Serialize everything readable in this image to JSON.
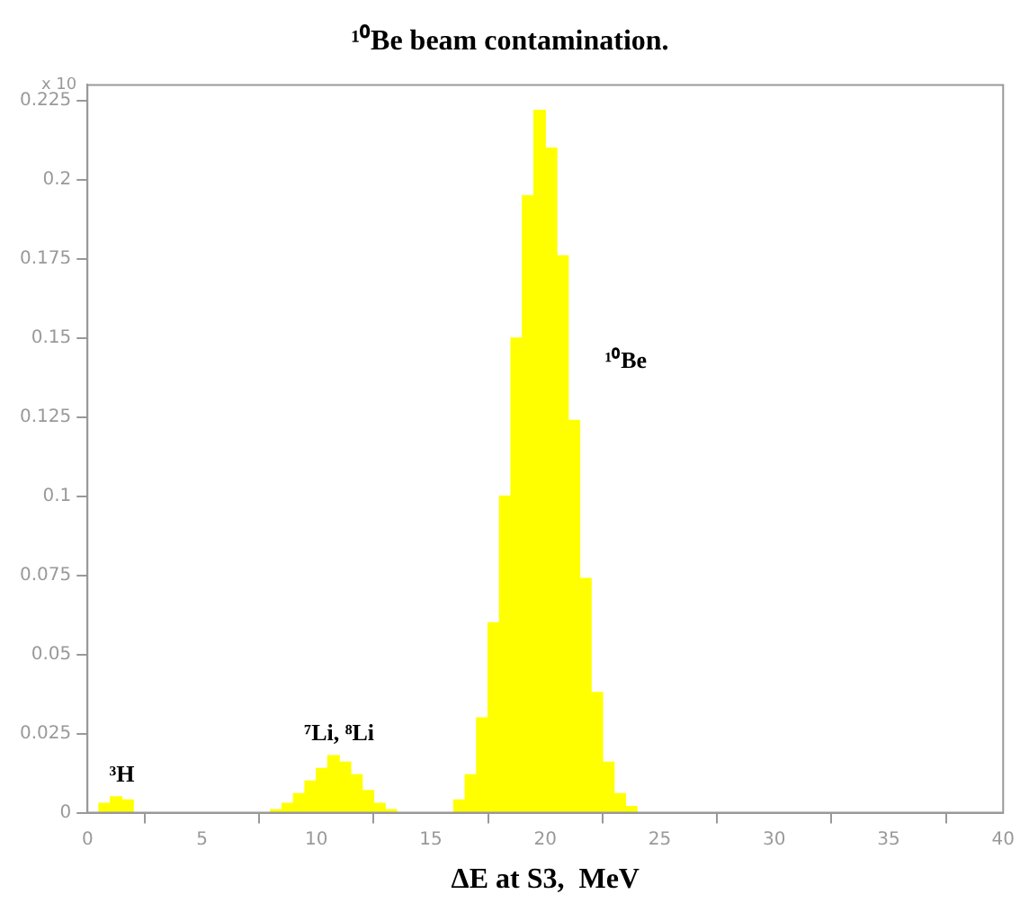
{
  "chart_data": {
    "type": "histogram",
    "title": "¹⁰Be beam contamination.",
    "xlabel": "ΔE at S3,  MeV",
    "color": "#ffff00",
    "bins": [
      0,
      0.5,
      1,
      1.5,
      2,
      2.5,
      3,
      3.5,
      4,
      4.5,
      5,
      5.5,
      6,
      6.5,
      7,
      7.5,
      8,
      8.5,
      9,
      9.5,
      10,
      10.5,
      11,
      11.5,
      12,
      12.5,
      13,
      13.5,
      14,
      14.5,
      15,
      15.5,
      16,
      16.5,
      17,
      17.5,
      18,
      18.5,
      19,
      19.5,
      20,
      20.5,
      21,
      21.5,
      22,
      22.5,
      23,
      23.5,
      24
    ],
    "values": [
      0,
      0.003,
      0.005,
      0.004,
      0,
      0,
      0,
      0,
      0,
      0,
      0,
      0,
      0,
      0,
      0,
      0,
      0.001,
      0.003,
      0.006,
      0.01,
      0.014,
      0.018,
      0.016,
      0.012,
      0.007,
      0.003,
      0.001,
      0,
      0,
      0,
      0,
      0,
      0.004,
      0.012,
      0.03,
      0.06,
      0.1,
      0.15,
      0.195,
      0.222,
      0.21,
      0.176,
      0.124,
      0.074,
      0.038,
      0.016,
      0.006,
      0.002
    ],
    "xlim": [
      0,
      40
    ],
    "xticks": [
      0,
      5,
      10,
      15,
      20,
      25,
      30,
      35,
      40
    ],
    "ylim": [
      0,
      0.23
    ],
    "yticks": [
      0,
      0.025,
      0.05,
      0.075,
      0.1,
      0.125,
      0.15,
      0.175,
      0.2,
      0.225
    ],
    "annotations": [
      "x 10",
      {
        "text": "³H",
        "x": 1.5,
        "y": 0.008
      },
      {
        "text": "⁷Li, ⁸Li",
        "x": 11,
        "y": 0.021
      },
      "¹⁰Be"
    ],
    "grid": false,
    "legend": false
  }
}
